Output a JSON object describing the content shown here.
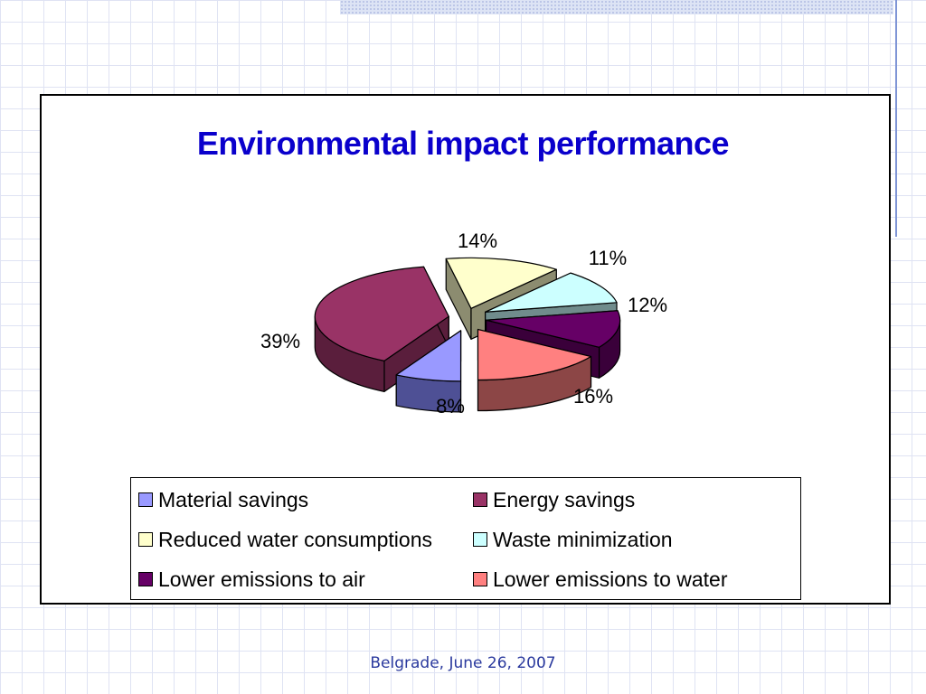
{
  "chart_data": {
    "type": "pie",
    "title": "Environmental impact performance",
    "legend_position": "bottom",
    "slices": [
      {
        "name": "Material savings",
        "value": 8,
        "label": "8%",
        "color": "#9999ff",
        "side_color": "#4e5095"
      },
      {
        "name": "Energy savings",
        "value": 39,
        "label": "39%",
        "color": "#993366",
        "side_color": "#5a1e3c"
      },
      {
        "name": "Reduced water consumptions",
        "value": 14,
        "label": "14%",
        "color": "#ffffcc",
        "side_color": "#8c8c70"
      },
      {
        "name": "Waste minimization",
        "value": 11,
        "label": "11%",
        "color": "#ccffff",
        "side_color": "#708c8c"
      },
      {
        "name": "Lower emissions to air",
        "value": 12,
        "label": "12%",
        "color": "#660066",
        "side_color": "#3a003a"
      },
      {
        "name": "Lower emissions to water",
        "value": 16,
        "label": "16%",
        "color": "#ff8080",
        "side_color": "#8c4646"
      }
    ]
  },
  "footer": "Belgrade, June 26, 2007"
}
